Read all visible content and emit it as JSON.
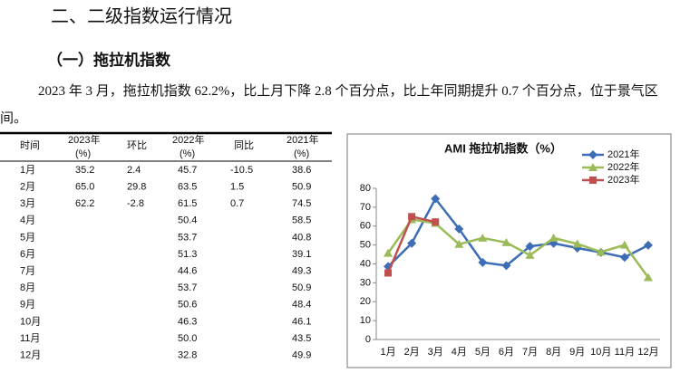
{
  "document": {
    "heading": "二、二级指数运行情况",
    "subheading": "（一）拖拉机指数",
    "paragraph": "2023 年 3 月，拖拉机指数 62.2%，比上月下降 2.8 个百分点，比上年同期提升 0.7 个百分点，位于景气区间。"
  },
  "table": {
    "header": [
      [
        "时间"
      ],
      [
        "2023年",
        "(%)"
      ],
      [
        "环比"
      ],
      [
        "2022年",
        "(%)"
      ],
      [
        "同比"
      ],
      [
        "2021年",
        "(%)"
      ]
    ],
    "rows": [
      [
        "1月",
        "35.2",
        "2.4",
        "45.7",
        "-10.5",
        "38.6"
      ],
      [
        "2月",
        "65.0",
        "29.8",
        "63.5",
        "1.5",
        "50.9"
      ],
      [
        "3月",
        "62.2",
        "-2.8",
        "61.5",
        "0.7",
        "74.5"
      ],
      [
        "4月",
        null,
        null,
        "50.4",
        null,
        "58.5"
      ],
      [
        "5月",
        null,
        null,
        "53.7",
        null,
        "40.8"
      ],
      [
        "6月",
        null,
        null,
        "51.3",
        null,
        "39.1"
      ],
      [
        "7月",
        null,
        null,
        "44.6",
        null,
        "49.3"
      ],
      [
        "8月",
        null,
        null,
        "53.7",
        null,
        "50.9"
      ],
      [
        "9月",
        null,
        null,
        "50.6",
        null,
        "48.4"
      ],
      [
        "10月",
        null,
        null,
        "46.3",
        null,
        "46.1"
      ],
      [
        "11月",
        null,
        null,
        "50.0",
        null,
        "43.5"
      ],
      [
        "12月",
        null,
        null,
        "32.8",
        null,
        "49.9"
      ]
    ]
  },
  "chart_data": {
    "type": "line",
    "title": "AMI 拖拉机指数（%）",
    "categories": [
      "1月",
      "2月",
      "3月",
      "4月",
      "5月",
      "6月",
      "7月",
      "8月",
      "9月",
      "10月",
      "11月",
      "12月"
    ],
    "series": [
      {
        "name": "2021年",
        "color": "#3d6db5",
        "marker": "diamond",
        "values": [
          38.6,
          50.9,
          74.5,
          58.5,
          40.8,
          39.1,
          49.3,
          50.9,
          48.4,
          46.1,
          43.5,
          49.9
        ]
      },
      {
        "name": "2022年",
        "color": "#9bbb59",
        "marker": "triangle",
        "values": [
          45.7,
          63.5,
          61.5,
          50.4,
          53.7,
          51.3,
          44.6,
          53.7,
          50.6,
          46.3,
          50.0,
          32.8
        ]
      },
      {
        "name": "2023年",
        "color": "#c0504d",
        "marker": "square",
        "values": [
          35.2,
          65.0,
          62.2,
          null,
          null,
          null,
          null,
          null,
          null,
          null,
          null,
          null
        ]
      }
    ],
    "ylim": [
      0,
      80
    ],
    "yticks": [
      0,
      10,
      20,
      30,
      40,
      50,
      60,
      70,
      80
    ],
    "grid": false,
    "legend": "top-right"
  }
}
